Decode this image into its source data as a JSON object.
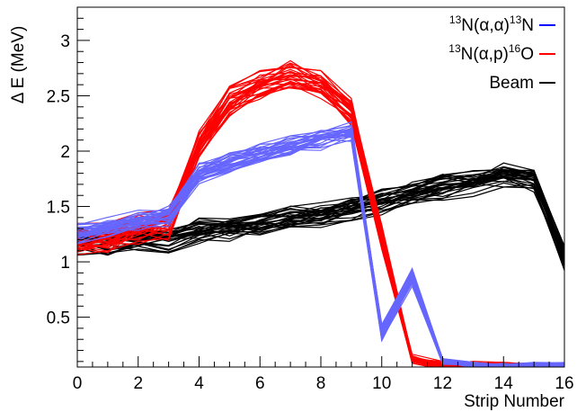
{
  "chart_data": {
    "type": "line",
    "title": "",
    "xlabel": "Strip Number",
    "ylabel": "Δ E  (MeV)",
    "xlim": [
      0,
      16
    ],
    "ylim": [
      0.05,
      3.3
    ],
    "x_ticks": [
      "0",
      "2",
      "4",
      "6",
      "8",
      "10",
      "12",
      "14",
      "16"
    ],
    "x_tick_values": [
      0,
      2,
      4,
      6,
      8,
      10,
      12,
      14,
      16
    ],
    "y_ticks": [
      "0.5",
      "1",
      "1.5",
      "2",
      "2.5",
      "3"
    ],
    "y_tick_values": [
      0.5,
      1,
      1.5,
      2,
      2.5,
      3
    ],
    "grid": false,
    "legend_position": "top-right",
    "x": [
      0,
      1,
      2,
      3,
      4,
      5,
      6,
      7,
      8,
      9,
      10,
      11,
      12,
      13,
      14,
      15,
      16
    ],
    "series": [
      {
        "name": "Beam",
        "color": "#000000",
        "legend": {
          "text": "Beam"
        },
        "trace_count": 30,
        "band_width": 0.08,
        "values": [
          1.18,
          1.17,
          1.22,
          1.2,
          1.28,
          1.3,
          1.33,
          1.38,
          1.42,
          1.48,
          1.55,
          1.62,
          1.68,
          1.72,
          1.78,
          1.75,
          1.05
        ]
      },
      {
        "name": "13N(α,p)16O",
        "color": "#ff0000",
        "legend": {
          "sup1": "13",
          "base1": "N(α,p)",
          "sup2": "16",
          "base2": "O"
        },
        "trace_count": 30,
        "band_width": 0.1,
        "values": [
          1.2,
          1.2,
          1.3,
          1.35,
          2.05,
          2.45,
          2.6,
          2.68,
          2.6,
          2.35,
          1.2,
          0.12,
          0.06,
          0.06,
          0.05,
          0.05,
          0.05
        ]
      },
      {
        "name": "13N(α,α)13N",
        "color": "#6666ff",
        "legend": {
          "sup1": "13",
          "base1": "N(α,α)",
          "sup2": "13",
          "base2": "N"
        },
        "trace_count": 30,
        "band_width": 0.07,
        "values": [
          1.25,
          1.32,
          1.38,
          1.42,
          1.8,
          1.9,
          1.98,
          2.05,
          2.12,
          2.18,
          0.35,
          0.85,
          0.1,
          0.07,
          0.06,
          0.06,
          0.07
        ]
      }
    ]
  }
}
